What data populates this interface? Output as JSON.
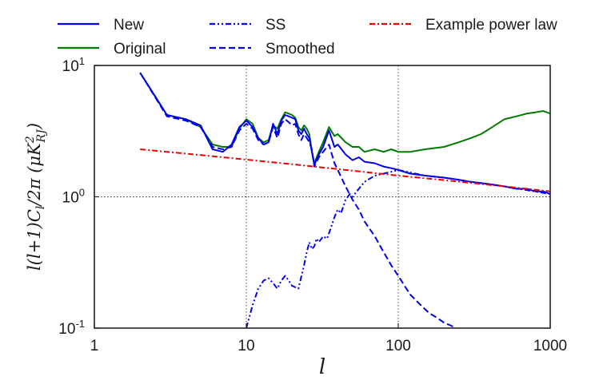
{
  "chart_data": {
    "type": "line",
    "xscale": "log",
    "yscale": "log",
    "xlim": [
      1,
      1000
    ],
    "ylim": [
      0.1,
      10
    ],
    "grid": true,
    "grid_note": "dotted grid lines at the decades",
    "xlabel": "l",
    "ylabel": "l(l+1)C_l/2π (μK²_RJ)",
    "xtick_labels": [
      {
        "v": 1,
        "label": "1"
      },
      {
        "v": 10,
        "label": "10"
      },
      {
        "v": 100,
        "label": "100"
      },
      {
        "v": 1000,
        "label": "1000"
      }
    ],
    "ytick_labels": [
      {
        "v": 0.1,
        "base": "10",
        "exp": "-1"
      },
      {
        "v": 1,
        "base": "10",
        "exp": "0"
      },
      {
        "v": 10,
        "base": "10",
        "exp": "1"
      }
    ],
    "legend_position": "top, above plot, 3 columns",
    "series": [
      {
        "name": "New",
        "color": "#0000ee",
        "style": "solid",
        "x": [
          2,
          3,
          4,
          5,
          6,
          7,
          8,
          9,
          10,
          11,
          12,
          13,
          14,
          15,
          16,
          17,
          18,
          19,
          20,
          21,
          22,
          23,
          24,
          25,
          26,
          27,
          28,
          30,
          32,
          35,
          38,
          40,
          45,
          50,
          55,
          60,
          70,
          80,
          90,
          100,
          120,
          150,
          200,
          250,
          300,
          400,
          500,
          600,
          700,
          800,
          900,
          1000
        ],
        "y": [
          8.8,
          4.2,
          3.9,
          3.5,
          2.3,
          2.2,
          2.5,
          3.4,
          3.8,
          3.4,
          2.8,
          2.5,
          2.6,
          3.6,
          3.0,
          3.8,
          4.2,
          4.1,
          4.0,
          3.9,
          3.2,
          3.0,
          3.3,
          3.0,
          2.8,
          2.2,
          1.75,
          2.1,
          2.4,
          3.2,
          2.4,
          2.5,
          2.1,
          1.9,
          2.0,
          1.85,
          1.8,
          1.7,
          1.65,
          1.6,
          1.5,
          1.45,
          1.4,
          1.35,
          1.3,
          1.25,
          1.2,
          1.15,
          1.15,
          1.1,
          1.1,
          1.05
        ]
      },
      {
        "name": "Original",
        "color": "#007a00",
        "style": "solid",
        "x": [
          2,
          3,
          4,
          5,
          6,
          7,
          8,
          9,
          10,
          11,
          12,
          13,
          14,
          15,
          16,
          17,
          18,
          19,
          20,
          21,
          22,
          23,
          24,
          25,
          26,
          27,
          28,
          30,
          32,
          35,
          38,
          40,
          45,
          50,
          55,
          60,
          70,
          80,
          90,
          100,
          120,
          150,
          200,
          250,
          300,
          350,
          400,
          500,
          600,
          700,
          800,
          900,
          1000
        ],
        "y": [
          8.8,
          4.2,
          3.9,
          3.4,
          2.5,
          2.4,
          2.4,
          3.3,
          3.9,
          3.6,
          2.8,
          2.6,
          2.7,
          3.5,
          3.3,
          3.9,
          4.4,
          4.3,
          4.2,
          4.0,
          3.4,
          3.2,
          3.5,
          3.3,
          3.0,
          2.2,
          1.8,
          2.2,
          2.6,
          3.4,
          2.9,
          3.0,
          2.6,
          2.4,
          2.4,
          2.2,
          2.3,
          2.2,
          2.3,
          2.2,
          2.2,
          2.3,
          2.4,
          2.6,
          2.8,
          3.0,
          3.3,
          3.9,
          4.1,
          4.3,
          4.4,
          4.5,
          4.3
        ]
      },
      {
        "name": "SS",
        "color": "#0000ee",
        "style": "dashdotdot",
        "x": [
          10,
          11,
          12,
          13,
          14,
          15,
          16,
          17,
          18,
          19,
          20,
          22,
          24,
          25,
          26,
          27,
          28,
          29,
          30,
          32,
          34,
          36,
          38,
          40,
          42,
          45,
          48,
          50,
          55,
          60,
          70,
          80,
          90,
          100,
          150,
          200,
          300,
          500,
          1000
        ],
        "y": [
          0.1,
          0.15,
          0.2,
          0.23,
          0.24,
          0.22,
          0.2,
          0.23,
          0.25,
          0.23,
          0.21,
          0.2,
          0.3,
          0.38,
          0.45,
          0.4,
          0.42,
          0.48,
          0.45,
          0.5,
          0.48,
          0.58,
          0.7,
          0.8,
          0.75,
          0.95,
          1.05,
          1.0,
          1.15,
          1.3,
          1.45,
          1.5,
          1.55,
          1.6,
          1.45,
          1.4,
          1.3,
          1.2,
          1.05
        ]
      },
      {
        "name": "Smoothed",
        "color": "#0000ee",
        "style": "dashed",
        "x": [
          2,
          3,
          4,
          5,
          6,
          7,
          8,
          9,
          10,
          11,
          12,
          13,
          14,
          15,
          16,
          17,
          18,
          19,
          20,
          21,
          22,
          23,
          24,
          25,
          26,
          27,
          28,
          30,
          32,
          35,
          38,
          40,
          45,
          50,
          55,
          60,
          70,
          80,
          90,
          100,
          110,
          120,
          140,
          160,
          180,
          200,
          220,
          240
        ],
        "y": [
          8.8,
          4.1,
          3.8,
          3.4,
          2.4,
          2.3,
          2.4,
          3.2,
          3.6,
          3.3,
          2.7,
          2.5,
          2.6,
          3.4,
          2.8,
          3.6,
          3.9,
          3.7,
          3.5,
          3.6,
          3.0,
          2.7,
          3.0,
          2.8,
          2.6,
          2.3,
          1.7,
          2.0,
          2.2,
          2.5,
          1.8,
          1.6,
          1.2,
          0.95,
          0.8,
          0.65,
          0.5,
          0.38,
          0.3,
          0.25,
          0.21,
          0.18,
          0.15,
          0.13,
          0.12,
          0.11,
          0.105,
          0.1
        ]
      },
      {
        "name": "Example power law",
        "color": "#ee0000",
        "style": "dashdot",
        "x": [
          2,
          5,
          10,
          20,
          50,
          100,
          200,
          500,
          1000
        ],
        "y": [
          2.3,
          2.08,
          1.92,
          1.77,
          1.58,
          1.45,
          1.34,
          1.2,
          1.1
        ]
      }
    ]
  }
}
